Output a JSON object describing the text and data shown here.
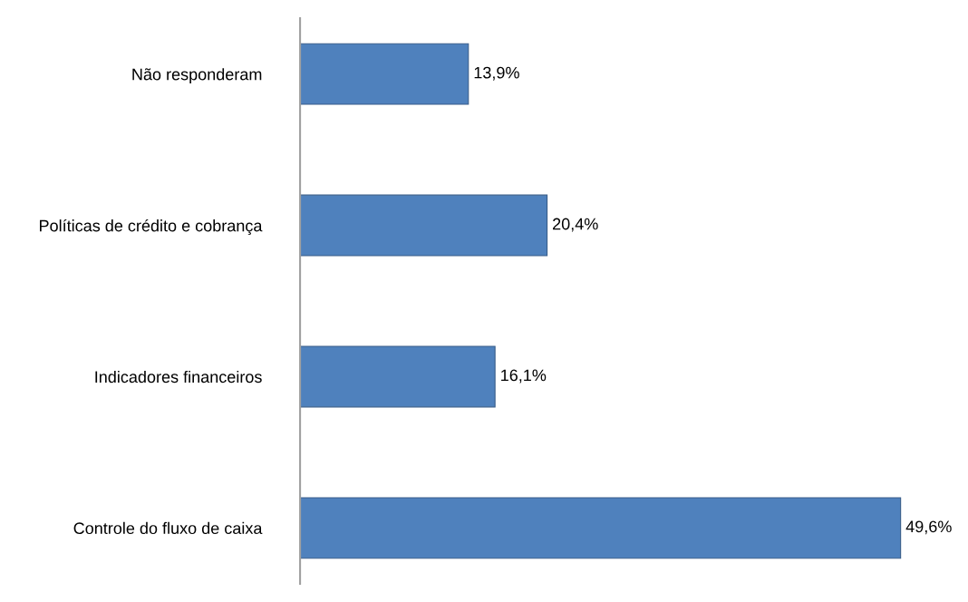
{
  "chart_data": {
    "type": "bar",
    "orientation": "horizontal",
    "categories": [
      "Não responderam",
      "Políticas de crédito e cobrança",
      "Indicadores financeiros",
      "Controle do fluxo de caixa"
    ],
    "values": [
      13.9,
      20.4,
      16.1,
      49.6
    ],
    "value_labels": [
      "13,9%",
      "20,4%",
      "16,1%",
      "49,6%"
    ],
    "color": "#4f81bd",
    "grid": false,
    "legend": false
  }
}
